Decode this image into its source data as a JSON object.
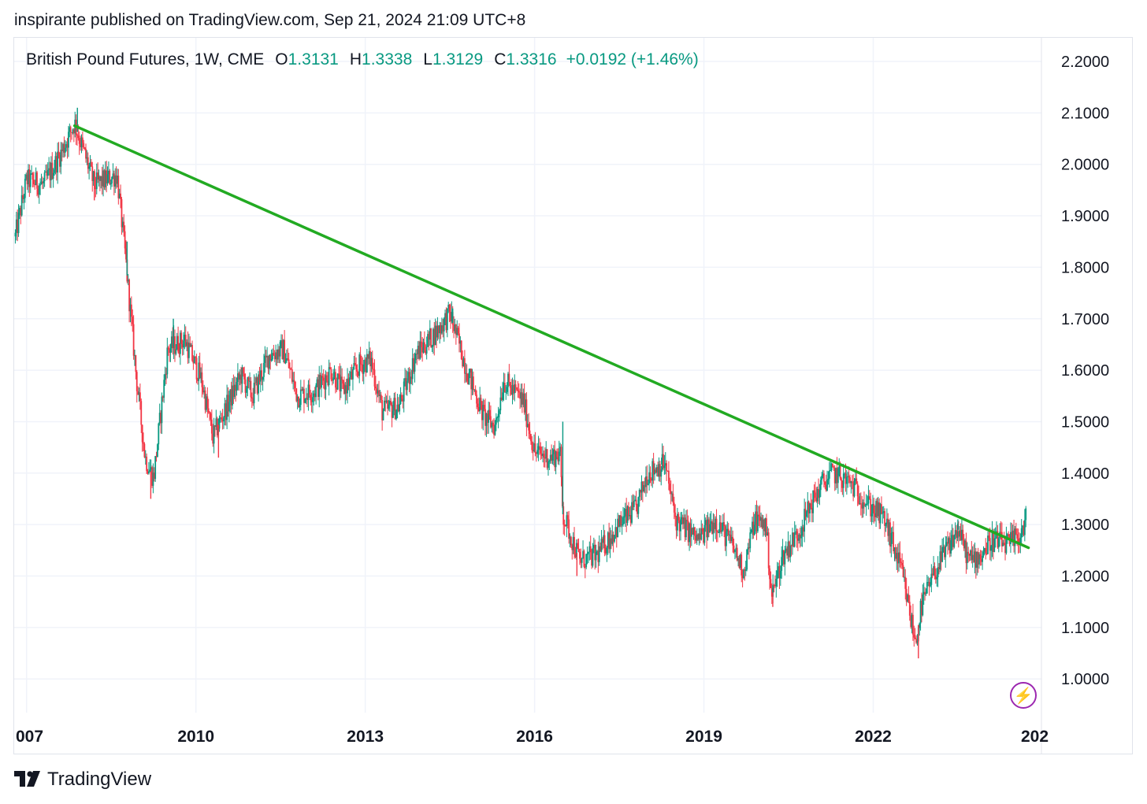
{
  "header": {
    "published_text": "inspirante published on TradingView.com, Sep 21, 2024 21:09 UTC+8"
  },
  "legend": {
    "symbol": "British Pound Futures, 1W, CME",
    "open_label": "O",
    "open_value": "1.3131",
    "high_label": "H",
    "high_value": "1.3338",
    "low_label": "L",
    "low_value": "1.3129",
    "close_label": "C",
    "close_value": "1.3316",
    "change": "+0.0192 (+1.46%)"
  },
  "footer": {
    "brand": "TradingView"
  },
  "icons": {
    "logo": "tradingview-logo-icon",
    "bolt": "lightning-bolt-icon"
  },
  "colors": {
    "up": "#089981",
    "down": "#f23645",
    "trendline": "#22aa22",
    "grid": "#f0f3fa",
    "bolt": "#9c27b0"
  },
  "chart_data": {
    "type": "candlestick",
    "title": "British Pound Futures, 1W, CME",
    "y_ticks": [
      "2.2000",
      "2.1000",
      "2.0000",
      "1.9000",
      "1.8000",
      "1.7000",
      "1.6000",
      "1.5000",
      "1.4000",
      "1.3000",
      "1.2000",
      "1.1000",
      "1.0000"
    ],
    "x_ticks": [
      "007",
      "2010",
      "2013",
      "2016",
      "2019",
      "2022",
      "202"
    ],
    "ylim": [
      0.94,
      2.23
    ],
    "xlim": [
      2006.78,
      2024.98
    ],
    "grid": true,
    "price_path": [
      [
        2006.8,
        1.86
      ],
      [
        2007.0,
        1.97
      ],
      [
        2007.3,
        1.96
      ],
      [
        2007.6,
        2.02
      ],
      [
        2007.85,
        2.08
      ],
      [
        2008.2,
        1.96
      ],
      [
        2008.6,
        1.98
      ],
      [
        2008.75,
        1.82
      ],
      [
        2008.95,
        1.58
      ],
      [
        2009.1,
        1.43
      ],
      [
        2009.25,
        1.39
      ],
      [
        2009.5,
        1.64
      ],
      [
        2009.8,
        1.66
      ],
      [
        2010.1,
        1.58
      ],
      [
        2010.3,
        1.47
      ],
      [
        2010.55,
        1.53
      ],
      [
        2010.8,
        1.59
      ],
      [
        2011.0,
        1.55
      ],
      [
        2011.3,
        1.63
      ],
      [
        2011.55,
        1.64
      ],
      [
        2011.8,
        1.55
      ],
      [
        2012.1,
        1.56
      ],
      [
        2012.4,
        1.6
      ],
      [
        2012.6,
        1.56
      ],
      [
        2012.9,
        1.61
      ],
      [
        2013.1,
        1.62
      ],
      [
        2013.3,
        1.52
      ],
      [
        2013.6,
        1.53
      ],
      [
        2013.9,
        1.63
      ],
      [
        2014.3,
        1.68
      ],
      [
        2014.5,
        1.71
      ],
      [
        2014.8,
        1.6
      ],
      [
        2015.1,
        1.51
      ],
      [
        2015.3,
        1.49
      ],
      [
        2015.45,
        1.58
      ],
      [
        2015.8,
        1.54
      ],
      [
        2016.0,
        1.44
      ],
      [
        2016.3,
        1.43
      ],
      [
        2016.45,
        1.44
      ],
      [
        2016.5,
        1.32
      ],
      [
        2016.8,
        1.23
      ],
      [
        2017.1,
        1.24
      ],
      [
        2017.5,
        1.3
      ],
      [
        2017.8,
        1.33
      ],
      [
        2018.0,
        1.4
      ],
      [
        2018.3,
        1.42
      ],
      [
        2018.5,
        1.31
      ],
      [
        2018.9,
        1.27
      ],
      [
        2019.2,
        1.31
      ],
      [
        2019.5,
        1.26
      ],
      [
        2019.7,
        1.21
      ],
      [
        2019.9,
        1.31
      ],
      [
        2020.1,
        1.3
      ],
      [
        2020.2,
        1.16
      ],
      [
        2020.4,
        1.24
      ],
      [
        2020.7,
        1.29
      ],
      [
        2020.9,
        1.34
      ],
      [
        2021.1,
        1.38
      ],
      [
        2021.3,
        1.4
      ],
      [
        2021.6,
        1.38
      ],
      [
        2021.9,
        1.34
      ],
      [
        2022.2,
        1.31
      ],
      [
        2022.5,
        1.21
      ],
      [
        2022.75,
        1.07
      ],
      [
        2022.85,
        1.14
      ],
      [
        2023.1,
        1.21
      ],
      [
        2023.3,
        1.25
      ],
      [
        2023.5,
        1.29
      ],
      [
        2023.7,
        1.23
      ],
      [
        2023.9,
        1.24
      ],
      [
        2024.1,
        1.27
      ],
      [
        2024.4,
        1.26
      ],
      [
        2024.6,
        1.28
      ],
      [
        2024.72,
        1.31
      ]
    ],
    "extremes": [
      [
        2007.9,
        2.11
      ],
      [
        2008.2,
        1.93
      ],
      [
        2008.78,
        1.85
      ],
      [
        2009.2,
        1.35
      ],
      [
        2009.6,
        1.7
      ],
      [
        2010.4,
        1.43
      ],
      [
        2014.55,
        1.72
      ],
      [
        2016.5,
        1.5
      ],
      [
        2016.75,
        1.2
      ],
      [
        2018.25,
        1.43
      ],
      [
        2020.22,
        1.14
      ],
      [
        2021.4,
        1.42
      ],
      [
        2022.8,
        1.04
      ],
      [
        2023.5,
        1.31
      ]
    ],
    "trendline": {
      "start": [
        2007.85,
        2.075
      ],
      "end": [
        2024.75,
        1.255
      ]
    },
    "last_close": 1.3316
  }
}
